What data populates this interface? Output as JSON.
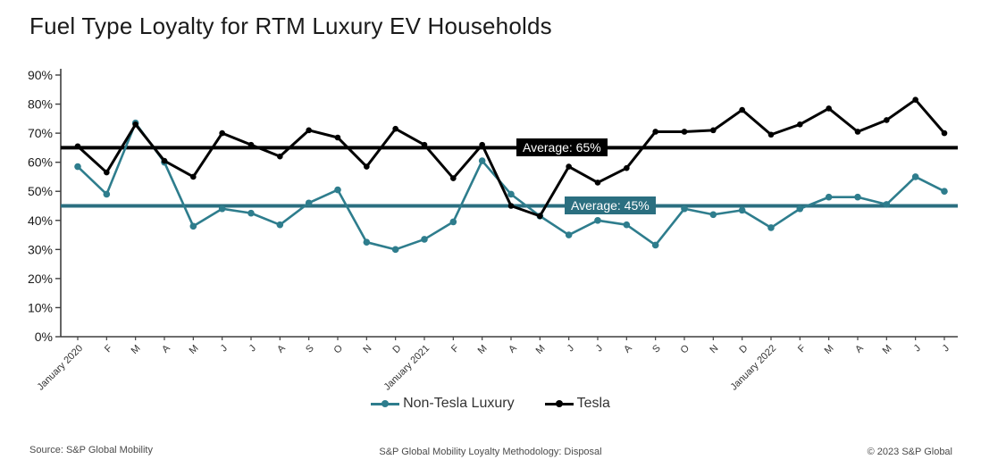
{
  "title": "Fuel Type Loyalty for RTM Luxury EV Households",
  "chart_data": {
    "type": "line",
    "title": "Fuel Type Loyalty for RTM Luxury EV Households",
    "xlabel": "",
    "ylabel": "",
    "ylim": [
      0,
      90
    ],
    "y_tick_step": 10,
    "y_tick_labels": [
      "0%",
      "10%",
      "20%",
      "30%",
      "40%",
      "50%",
      "60%",
      "70%",
      "80%",
      "90%"
    ],
    "grid": false,
    "legend_position": "bottom-center",
    "x_labels": [
      "January 2020",
      "F",
      "M",
      "A",
      "M",
      "J",
      "J",
      "A",
      "S",
      "O",
      "N",
      "D",
      "January 2021",
      "F",
      "M",
      "A",
      "M",
      "J",
      "J",
      "A",
      "S",
      "O",
      "N",
      "D",
      "January 2022",
      "F",
      "M",
      "A",
      "M",
      "J",
      "J"
    ],
    "series": [
      {
        "name": "Non-Tesla Luxury",
        "color": "#2E7D8D",
        "values": [
          58.5,
          49,
          73.5,
          60,
          38,
          44,
          42.5,
          38.5,
          46,
          50.5,
          32.5,
          30,
          33.5,
          39.5,
          60.5,
          49,
          41.5,
          35,
          40,
          38.5,
          31.5,
          44,
          42,
          43.5,
          37.5,
          44,
          48,
          48,
          45.5,
          55,
          50
        ]
      },
      {
        "name": "Tesla",
        "color": "#000000",
        "values": [
          65.5,
          56.5,
          73,
          60.5,
          55,
          70,
          66,
          62,
          71,
          68.5,
          58.5,
          71.5,
          66,
          54.5,
          66,
          45,
          41.5,
          58.5,
          53,
          58,
          70.5,
          70.5,
          71,
          78,
          69.5,
          73,
          78.5,
          70.5,
          74.5,
          81.5,
          70
        ]
      }
    ],
    "reference_lines": [
      {
        "label": "Average: 65%",
        "value": 65,
        "color": "#000000"
      },
      {
        "label": "Average: 45%",
        "value": 45,
        "color": "#2B6F80"
      }
    ]
  },
  "footer": {
    "source": "Source: S&P Global Mobility",
    "methodology": "S&P Global Mobility Loyalty Methodology: Disposal",
    "copyright": "© 2023 S&P Global"
  }
}
